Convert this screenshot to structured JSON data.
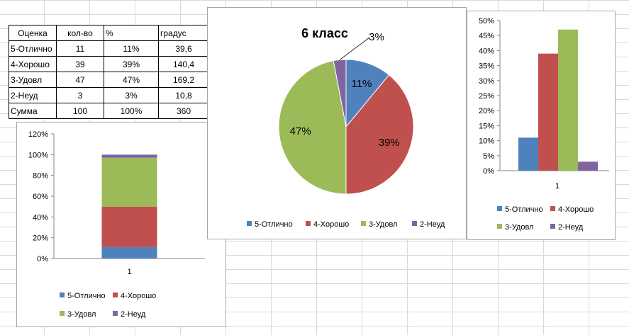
{
  "table": {
    "headers": [
      "Оценка",
      "кол-во",
      "%",
      "градус"
    ],
    "rows": [
      [
        "5-Отлично",
        "11",
        "11%",
        "39,6"
      ],
      [
        "4-Хорошо",
        "39",
        "39%",
        "140,4"
      ],
      [
        "3-Удовл",
        "47",
        "47%",
        "169,2"
      ],
      [
        "2-Неуд",
        "3",
        "3%",
        "10,8"
      ],
      [
        "Сумма",
        "100",
        "100%",
        "360"
      ]
    ]
  },
  "colors": {
    "s1": "#4f81bd",
    "s2": "#c0504d",
    "s3": "#9bbb59",
    "s4": "#8064a2"
  },
  "chart_data": [
    {
      "type": "bar",
      "subtype": "stacked-100",
      "categories": [
        "1"
      ],
      "series": [
        {
          "name": "5-Отлично",
          "values": [
            11
          ]
        },
        {
          "name": "4-Хорошо",
          "values": [
            39
          ]
        },
        {
          "name": "3-Удовл",
          "values": [
            47
          ]
        },
        {
          "name": "2-Неуд",
          "values": [
            3
          ]
        }
      ],
      "yticks": [
        "0%",
        "20%",
        "40%",
        "60%",
        "80%",
        "100%",
        "120%"
      ],
      "ylim": [
        0,
        120
      ],
      "legend": "bottom"
    },
    {
      "type": "pie",
      "title": "6 класс",
      "labels": [
        "5-Отлично",
        "4-Хорошо",
        "3-Удовл",
        "2-Неуд"
      ],
      "values": [
        11,
        39,
        47,
        3
      ],
      "data_labels": [
        "11%",
        "39%",
        "47%",
        "3%"
      ],
      "legend": "bottom"
    },
    {
      "type": "bar",
      "subtype": "clustered",
      "categories": [
        "1"
      ],
      "series": [
        {
          "name": "5-Отлично",
          "values": [
            11
          ]
        },
        {
          "name": "4-Хорошо",
          "values": [
            39
          ]
        },
        {
          "name": "3-Удовл",
          "values": [
            47
          ]
        },
        {
          "name": "2-Неуд",
          "values": [
            3
          ]
        }
      ],
      "yticks": [
        "0%",
        "5%",
        "10%",
        "15%",
        "20%",
        "25%",
        "30%",
        "35%",
        "40%",
        "45%",
        "50%"
      ],
      "ylim": [
        0,
        50
      ],
      "legend": "bottom"
    }
  ]
}
